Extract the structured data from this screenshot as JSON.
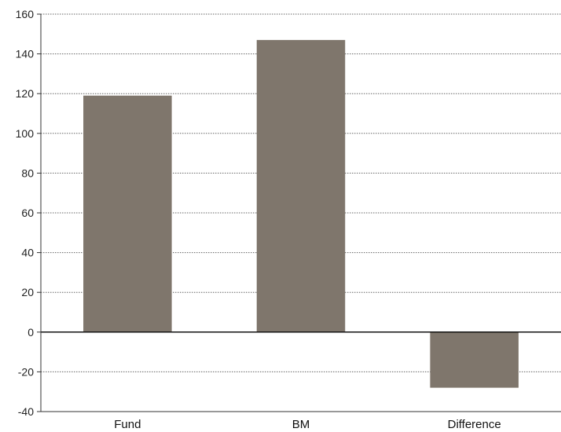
{
  "chart_data": {
    "type": "bar",
    "categories": [
      "Fund",
      "BM",
      "Difference"
    ],
    "values": [
      119,
      147,
      -28
    ],
    "ylim": [
      -40,
      160
    ],
    "yticks": [
      -40,
      -20,
      0,
      20,
      40,
      60,
      80,
      100,
      120,
      140,
      160
    ],
    "title": "",
    "xlabel": "",
    "ylabel": "",
    "grid": true,
    "bar_color": "#7f766c"
  }
}
